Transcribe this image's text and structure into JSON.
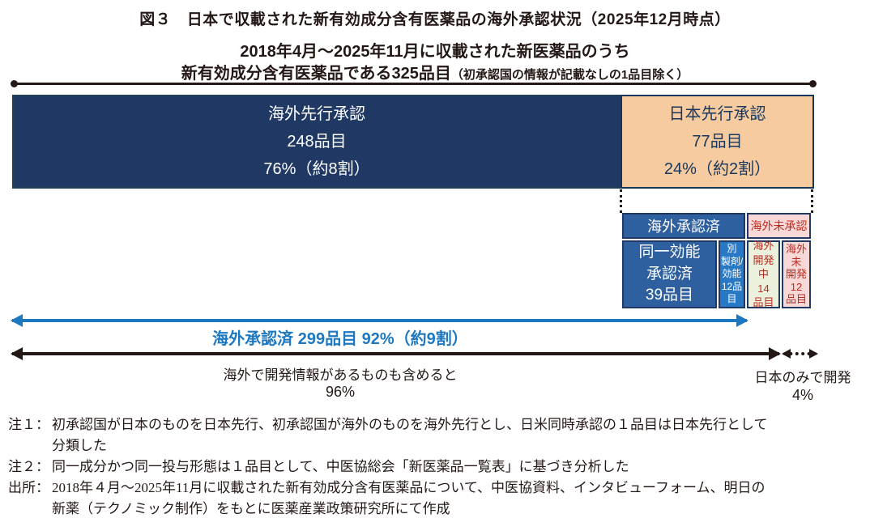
{
  "figure": {
    "title": "図３　日本で収載された新有効成分含有医薬品の海外承認状況（2025年12月時点）",
    "subtitle_line1": "2018年4月～2025年11月に収載された新医薬品のうち",
    "subtitle_line2_main": "新有効成分含有医薬品である325品目",
    "subtitle_line2_note": "（初承認国の情報が記載なしの1品目除く）"
  },
  "bar": {
    "overseas_first": "海外先行承認\n248品目\n76%（約8割）",
    "japan_first": "日本先行承認\n77品目\n24%（約2割）"
  },
  "breakdown": {
    "approved_overseas": "海外承認済",
    "not_approved_overseas": "海外未承認",
    "same_indication": "同一効能\n承認済\n39品目",
    "different_formulation": "別\n製剤/\n効能\n12品\n目",
    "in_development_overseas": "海外\n開発中\n14\n品目",
    "not_developed_overseas": "海外\n未\n開発\n12\n品目"
  },
  "arrows": {
    "overseas_approved_label": "海外承認済 299品目 92%（約9割）",
    "including_dev_label": "海外で開発情報があるものも含めると",
    "including_dev_percent": "96%",
    "japan_only_label": "日本のみで開発",
    "japan_only_percent": "4%"
  },
  "notes": [
    {
      "label": "注１：",
      "text": "初承認国が日本のものを日本先行、初承認国が海外のものを海外先行とし、日米同時承認の１品目は日本先行として\n分類した"
    },
    {
      "label": "注２：",
      "text": "同一成分かつ同一投与形態は１品目として、中医協総会「新医薬品一覧表」に基づき分析した"
    },
    {
      "label": "出所：",
      "text": "2018年４月～2025年11月に収載された新有効成分含有医薬品について、中医協資料、インタビューフォーム、明日の\n新薬（テクノミック制作）をもとに医薬産業政策研究所にて作成"
    }
  ],
  "colors": {
    "navy": "#1F3864",
    "orange": "#F7CBA0",
    "table_blue": "#2E5F9F",
    "table_bright_blue": "#2879C5",
    "table_green": "#EBF1DC",
    "table_pink": "#F8D9D7",
    "red_text": "#BE2B20",
    "arrow_blue": "#1E78C0",
    "ink_black": "#231815"
  },
  "chart_data": {
    "type": "bar",
    "title": "日本で収載された新有効成分含有医薬品の海外承認状況（2025年12月時点）",
    "period": "2018年4月～2025年11月",
    "total_items": 325,
    "categories": [
      "海外先行承認",
      "日本先行承認"
    ],
    "values": [
      248,
      77
    ],
    "percents": [
      76,
      24
    ],
    "percent_notes": [
      "約8割",
      "約2割"
    ],
    "japan_first_breakdown": {
      "海外承認済": [
        {
          "label": "同一効能承認済",
          "items": 39
        },
        {
          "label": "別製剤/効能",
          "items": 12
        }
      ],
      "海外未承認": [
        {
          "label": "海外開発中",
          "items": 14
        },
        {
          "label": "海外未開発",
          "items": 12
        }
      ]
    },
    "summaries": [
      {
        "label": "海外承認済",
        "items": 299,
        "percent": 92,
        "note": "約9割"
      },
      {
        "label": "海外で開発情報があるものも含めると",
        "percent": 96
      },
      {
        "label": "日本のみで開発",
        "percent": 4
      }
    ]
  }
}
